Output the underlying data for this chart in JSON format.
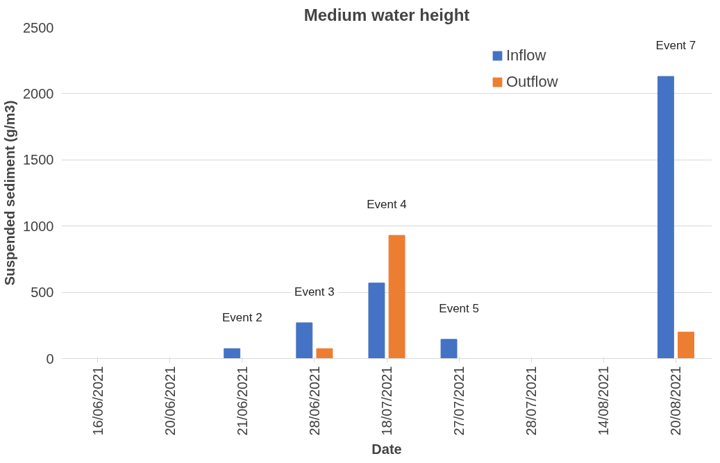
{
  "chart_data": {
    "type": "bar",
    "title": "Medium water height",
    "xlabel": "Date",
    "ylabel": "Suspended sediment (g/m3)",
    "categories": [
      "16/06/2021",
      "20/06/2021",
      "21/06/2021",
      "28/06/2021",
      "18/07/2021",
      "27/07/2021",
      "28/07/2021",
      "14/08/2021",
      "20/08/2021"
    ],
    "series": [
      {
        "name": "Inflow",
        "color": "#4472c4",
        "values": [
          0,
          0,
          75,
          270,
          570,
          145,
          0,
          0,
          2130
        ]
      },
      {
        "name": "Outflow",
        "color": "#ed7d31",
        "values": [
          0,
          0,
          0,
          75,
          930,
          0,
          0,
          0,
          200
        ]
      }
    ],
    "ylim": [
      0,
      2500
    ],
    "yticks": [
      0,
      500,
      1000,
      1500,
      2000,
      2500
    ],
    "grid": "y",
    "legend": "top right",
    "annotations": [
      {
        "text": "Event 2",
        "x": "21/06/2021",
        "y": 75
      },
      {
        "text": "Event 3",
        "x": "28/06/2021",
        "y": 270
      },
      {
        "text": "Event 4",
        "x": "18/07/2021",
        "y": 930
      },
      {
        "text": "Event 5",
        "x": "27/07/2021",
        "y": 145
      },
      {
        "text": "Event 7",
        "x": "20/08/2021",
        "y": 2130
      }
    ]
  }
}
